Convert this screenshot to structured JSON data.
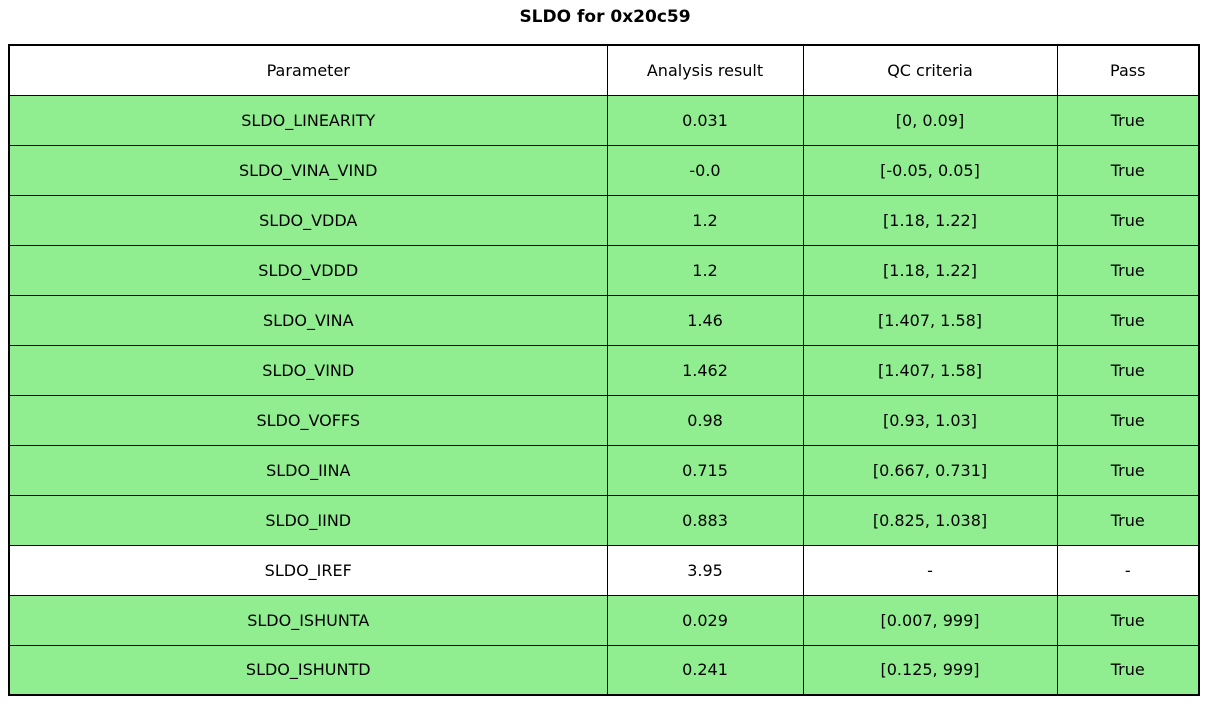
{
  "title": "SLDO for 0x20c59",
  "colors": {
    "pass_green": "#90EE90",
    "row_white": "#FFFFFF",
    "border": "#000000",
    "text": "#000000"
  },
  "chart_data": {
    "type": "table",
    "title": "SLDO for 0x20c59",
    "columns": [
      "Parameter",
      "Analysis result",
      "QC criteria",
      "Pass"
    ],
    "rows": [
      {
        "parameter": "SLDO_LINEARITY",
        "result": "0.031",
        "qc": "[0, 0.09]",
        "pass": "True",
        "highlight": "green"
      },
      {
        "parameter": "SLDO_VINA_VIND",
        "result": "-0.0",
        "qc": "[-0.05, 0.05]",
        "pass": "True",
        "highlight": "green"
      },
      {
        "parameter": "SLDO_VDDA",
        "result": "1.2",
        "qc": "[1.18, 1.22]",
        "pass": "True",
        "highlight": "green"
      },
      {
        "parameter": "SLDO_VDDD",
        "result": "1.2",
        "qc": "[1.18, 1.22]",
        "pass": "True",
        "highlight": "green"
      },
      {
        "parameter": "SLDO_VINA",
        "result": "1.46",
        "qc": "[1.407, 1.58]",
        "pass": "True",
        "highlight": "green"
      },
      {
        "parameter": "SLDO_VIND",
        "result": "1.462",
        "qc": "[1.407, 1.58]",
        "pass": "True",
        "highlight": "green"
      },
      {
        "parameter": "SLDO_VOFFS",
        "result": "0.98",
        "qc": "[0.93, 1.03]",
        "pass": "True",
        "highlight": "green"
      },
      {
        "parameter": "SLDO_IINA",
        "result": "0.715",
        "qc": "[0.667, 0.731]",
        "pass": "True",
        "highlight": "green"
      },
      {
        "parameter": "SLDO_IIND",
        "result": "0.883",
        "qc": "[0.825, 1.038]",
        "pass": "True",
        "highlight": "green"
      },
      {
        "parameter": "SLDO_IREF",
        "result": "3.95",
        "qc": "-",
        "pass": "-",
        "highlight": "white"
      },
      {
        "parameter": "SLDO_ISHUNTA",
        "result": "0.029",
        "qc": "[0.007, 999]",
        "pass": "True",
        "highlight": "green"
      },
      {
        "parameter": "SLDO_ISHUNTD",
        "result": "0.241",
        "qc": "[0.125, 999]",
        "pass": "True",
        "highlight": "green"
      }
    ]
  }
}
